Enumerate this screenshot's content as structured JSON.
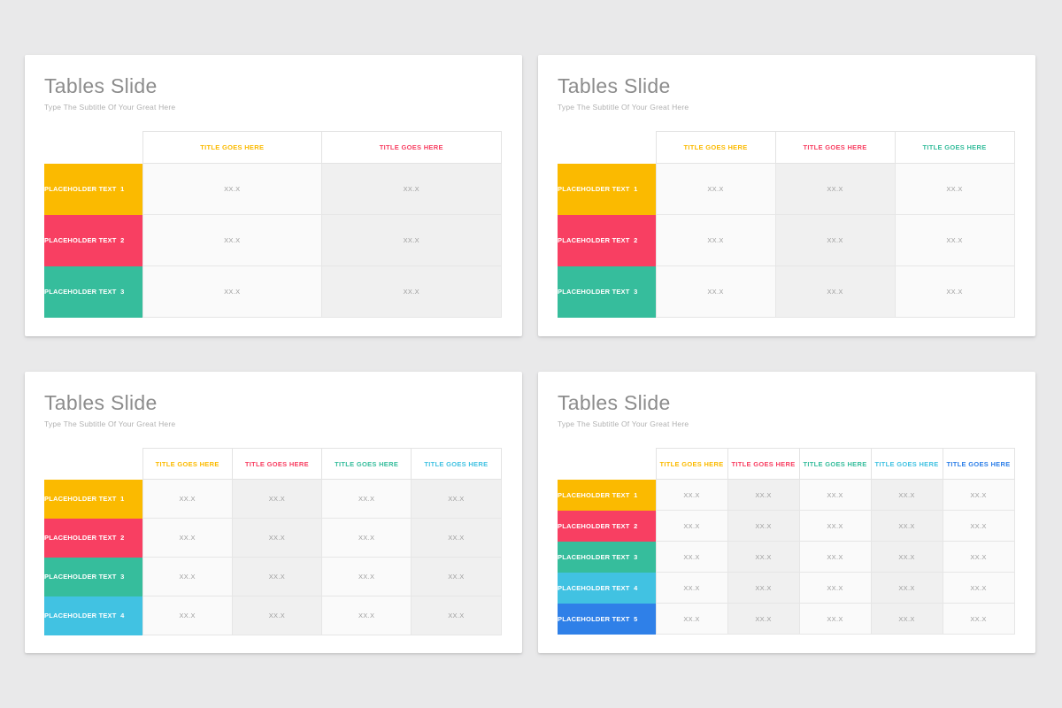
{
  "page": {
    "background_color": "#E9E9EA",
    "card_color": "#FFFFFF"
  },
  "palette": {
    "yellow": "#FBBA00",
    "pink": "#F83F62",
    "teal": "#36BD9C",
    "cyan": "#41C2E2",
    "blue": "#2F80E8",
    "title_text": "#8C8C8C",
    "subtitle_text": "#B1B1B1",
    "value_text": "#9E9E9E",
    "column_light": "#FAFAFA",
    "column_shaded": "#F0F0F0",
    "border": "#E3E3E3"
  },
  "slides": [
    {
      "title": "Tables Slide",
      "subtitle": "Type The Subtitle Of Your Great Here",
      "columns": [
        {
          "label": "TITLE GOES HERE",
          "color": "yellow"
        },
        {
          "label": "TITLE GOES HERE",
          "color": "pink"
        }
      ],
      "rows": [
        {
          "label": "PLACEHOLDER TEXT  1",
          "color": "yellow",
          "values": [
            "XX.X",
            "XX.X"
          ]
        },
        {
          "label": "PLACEHOLDER TEXT  2",
          "color": "pink",
          "values": [
            "XX.X",
            "XX.X"
          ]
        },
        {
          "label": "PLACEHOLDER TEXT  3",
          "color": "teal",
          "values": [
            "XX.X",
            "XX.X"
          ]
        }
      ]
    },
    {
      "title": "Tables Slide",
      "subtitle": "Type The Subtitle Of Your Great Here",
      "columns": [
        {
          "label": "TITLE GOES HERE",
          "color": "yellow"
        },
        {
          "label": "TITLE GOES HERE",
          "color": "pink"
        },
        {
          "label": "TITLE GOES HERE",
          "color": "teal"
        }
      ],
      "rows": [
        {
          "label": "PLACEHOLDER TEXT  1",
          "color": "yellow",
          "values": [
            "XX.X",
            "XX.X",
            "XX.X"
          ]
        },
        {
          "label": "PLACEHOLDER TEXT  2",
          "color": "pink",
          "values": [
            "XX.X",
            "XX.X",
            "XX.X"
          ]
        },
        {
          "label": "PLACEHOLDER TEXT  3",
          "color": "teal",
          "values": [
            "XX.X",
            "XX.X",
            "XX.X"
          ]
        }
      ]
    },
    {
      "title": "Tables Slide",
      "subtitle": "Type The Subtitle Of Your Great Here",
      "columns": [
        {
          "label": "TITLE GOES HERE",
          "color": "yellow"
        },
        {
          "label": "TITLE GOES HERE",
          "color": "pink"
        },
        {
          "label": "TITLE GOES HERE",
          "color": "teal"
        },
        {
          "label": "TITLE GOES HERE",
          "color": "cyan"
        }
      ],
      "rows": [
        {
          "label": "PLACEHOLDER TEXT  1",
          "color": "yellow",
          "values": [
            "XX.X",
            "XX.X",
            "XX.X",
            "XX.X"
          ]
        },
        {
          "label": "PLACEHOLDER TEXT  2",
          "color": "pink",
          "values": [
            "XX.X",
            "XX.X",
            "XX.X",
            "XX.X"
          ]
        },
        {
          "label": "PLACEHOLDER TEXT  3",
          "color": "teal",
          "values": [
            "XX.X",
            "XX.X",
            "XX.X",
            "XX.X"
          ]
        },
        {
          "label": "PLACEHOLDER TEXT  4",
          "color": "cyan",
          "values": [
            "XX.X",
            "XX.X",
            "XX.X",
            "XX.X"
          ]
        }
      ]
    },
    {
      "title": "Tables Slide",
      "subtitle": "Type The Subtitle Of Your Great Here",
      "columns": [
        {
          "label": "TITLE GOES HERE",
          "color": "yellow"
        },
        {
          "label": "TITLE GOES HERE",
          "color": "pink"
        },
        {
          "label": "TITLE GOES HERE",
          "color": "teal"
        },
        {
          "label": "TITLE GOES HERE",
          "color": "cyan"
        },
        {
          "label": "TITLE GOES HERE",
          "color": "blue"
        }
      ],
      "rows": [
        {
          "label": "PLACEHOLDER TEXT  1",
          "color": "yellow",
          "values": [
            "XX.X",
            "XX.X",
            "XX.X",
            "XX.X",
            "XX.X"
          ]
        },
        {
          "label": "PLACEHOLDER TEXT  2",
          "color": "pink",
          "values": [
            "XX.X",
            "XX.X",
            "XX.X",
            "XX.X",
            "XX.X"
          ]
        },
        {
          "label": "PLACEHOLDER TEXT  3",
          "color": "teal",
          "values": [
            "XX.X",
            "XX.X",
            "XX.X",
            "XX.X",
            "XX.X"
          ]
        },
        {
          "label": "PLACEHOLDER TEXT  4",
          "color": "cyan",
          "values": [
            "XX.X",
            "XX.X",
            "XX.X",
            "XX.X",
            "XX.X"
          ]
        },
        {
          "label": "PLACEHOLDER TEXT  5",
          "color": "blue",
          "values": [
            "XX.X",
            "XX.X",
            "XX.X",
            "XX.X",
            "XX.X"
          ]
        }
      ]
    }
  ]
}
